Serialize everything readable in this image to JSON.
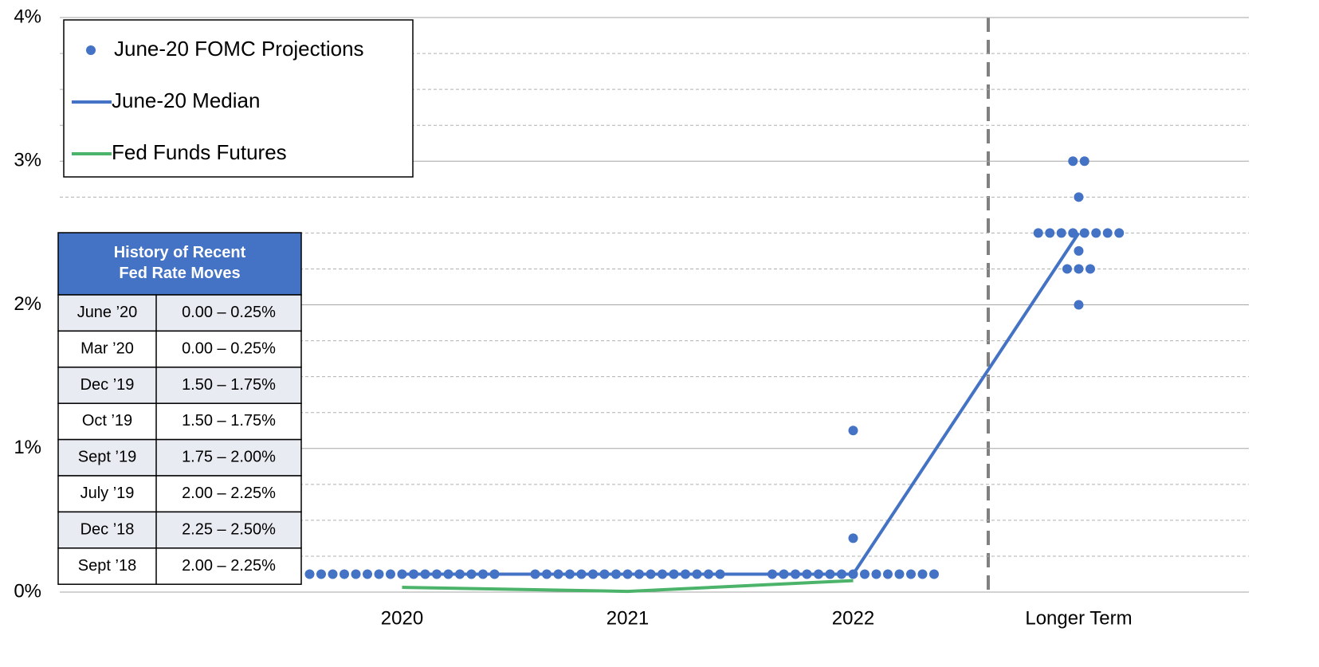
{
  "chart_data": {
    "type": "dot",
    "categories": [
      "2020",
      "2021",
      "2022",
      "Longer Term"
    ],
    "ylim": [
      0,
      4
    ],
    "yticks": [
      {
        "value": 0,
        "label": "0%"
      },
      {
        "value": 1,
        "label": "1%"
      },
      {
        "value": 2,
        "label": "2%"
      },
      {
        "value": 3,
        "label": "3%"
      },
      {
        "value": 4,
        "label": "4%"
      }
    ],
    "minor_yticks": [
      0.25,
      0.5,
      0.75,
      1.25,
      1.5,
      1.75,
      2.25,
      2.5,
      2.75,
      3.25,
      3.5,
      3.75
    ],
    "grid": true,
    "legend": "upper left",
    "series": [
      {
        "name": "June-20 FOMC Projections",
        "kind": "dots",
        "color": "#4472c4",
        "values": [
          [
            0.125,
            0.125,
            0.125,
            0.125,
            0.125,
            0.125,
            0.125,
            0.125,
            0.125,
            0.125,
            0.125,
            0.125,
            0.125,
            0.125,
            0.125,
            0.125,
            0.125
          ],
          [
            0.125,
            0.125,
            0.125,
            0.125,
            0.125,
            0.125,
            0.125,
            0.125,
            0.125,
            0.125,
            0.125,
            0.125,
            0.125,
            0.125,
            0.125,
            0.125,
            0.125
          ],
          [
            0.125,
            0.125,
            0.125,
            0.125,
            0.125,
            0.125,
            0.125,
            0.125,
            0.125,
            0.125,
            0.125,
            0.125,
            0.125,
            0.125,
            0.125,
            0.375,
            1.125
          ],
          [
            3.0,
            3.0,
            2.75,
            2.5,
            2.5,
            2.5,
            2.5,
            2.5,
            2.5,
            2.5,
            2.5,
            2.375,
            2.25,
            2.25,
            2.25,
            2.0
          ]
        ]
      },
      {
        "name": "June-20 Median",
        "kind": "line",
        "color": "#4472c4",
        "values": [
          0.125,
          0.125,
          0.125,
          2.5
        ]
      },
      {
        "name": "Fed Funds Futures",
        "kind": "line",
        "color": "#4cb36a",
        "values": [
          0.033,
          0.005,
          0.08,
          null
        ]
      }
    ]
  },
  "table": {
    "title": "History of Recent Fed Rate Moves",
    "header_color": "#4472c4",
    "rows": [
      [
        "June ’20",
        "0.00 – 0.25%"
      ],
      [
        "Mar ’20",
        "0.00 – 0.25%"
      ],
      [
        "Dec ’19",
        "1.50 – 1.75%"
      ],
      [
        "Oct ’19",
        "1.50 – 1.75%"
      ],
      [
        "Sept ’19",
        "1.75 – 2.00%"
      ],
      [
        "July ’19",
        "2.00 – 2.25%"
      ],
      [
        "Dec ’18",
        "2.25 – 2.50%"
      ],
      [
        "Sept ’18",
        "2.00 – 2.25%"
      ]
    ]
  }
}
